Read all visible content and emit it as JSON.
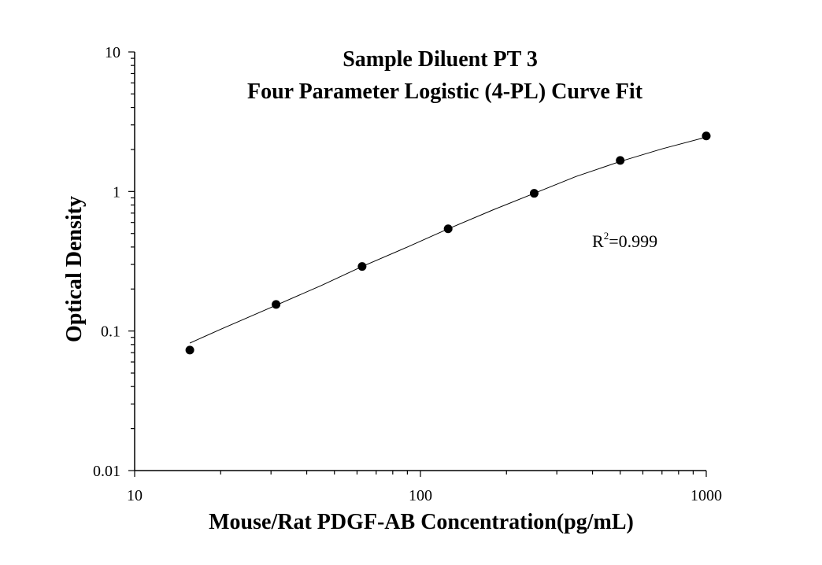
{
  "chart_data": {
    "type": "scatter",
    "title_line1": "Sample Diluent PT 3",
    "title_line2": "Four Parameter Logistic (4-PL) Curve Fit",
    "xlabel": "Mouse/Rat PDGF-AB Concentration(pg/mL)",
    "ylabel": "Optical Density",
    "x_scale": "log",
    "y_scale": "log",
    "xlim": [
      10,
      1000
    ],
    "ylim": [
      0.01,
      10
    ],
    "x_ticks": [
      {
        "value": 10,
        "label": "10"
      },
      {
        "value": 100,
        "label": "100"
      },
      {
        "value": 1000,
        "label": "1000"
      }
    ],
    "y_ticks": [
      {
        "value": 0.01,
        "label": "0.01"
      },
      {
        "value": 0.1,
        "label": "0.1"
      },
      {
        "value": 1,
        "label": "1"
      },
      {
        "value": 10,
        "label": "10"
      }
    ],
    "grid": false,
    "legend": "none",
    "series": [
      {
        "type": "scatter",
        "x": [
          15.6,
          31.25,
          62.5,
          125,
          250,
          500,
          1000
        ],
        "y": [
          0.073,
          0.155,
          0.29,
          0.54,
          0.97,
          1.67,
          2.5
        ]
      },
      {
        "type": "line",
        "x": [
          15.6,
          20,
          31.25,
          45,
          62.5,
          90,
          125,
          180,
          250,
          350,
          500,
          700,
          1000
        ],
        "y": [
          0.082,
          0.103,
          0.153,
          0.212,
          0.29,
          0.4,
          0.54,
          0.74,
          0.97,
          1.28,
          1.64,
          2.02,
          2.45
        ]
      }
    ],
    "annotation": {
      "r_label": "R",
      "superscript": "2",
      "value_text": "=0.999"
    }
  }
}
